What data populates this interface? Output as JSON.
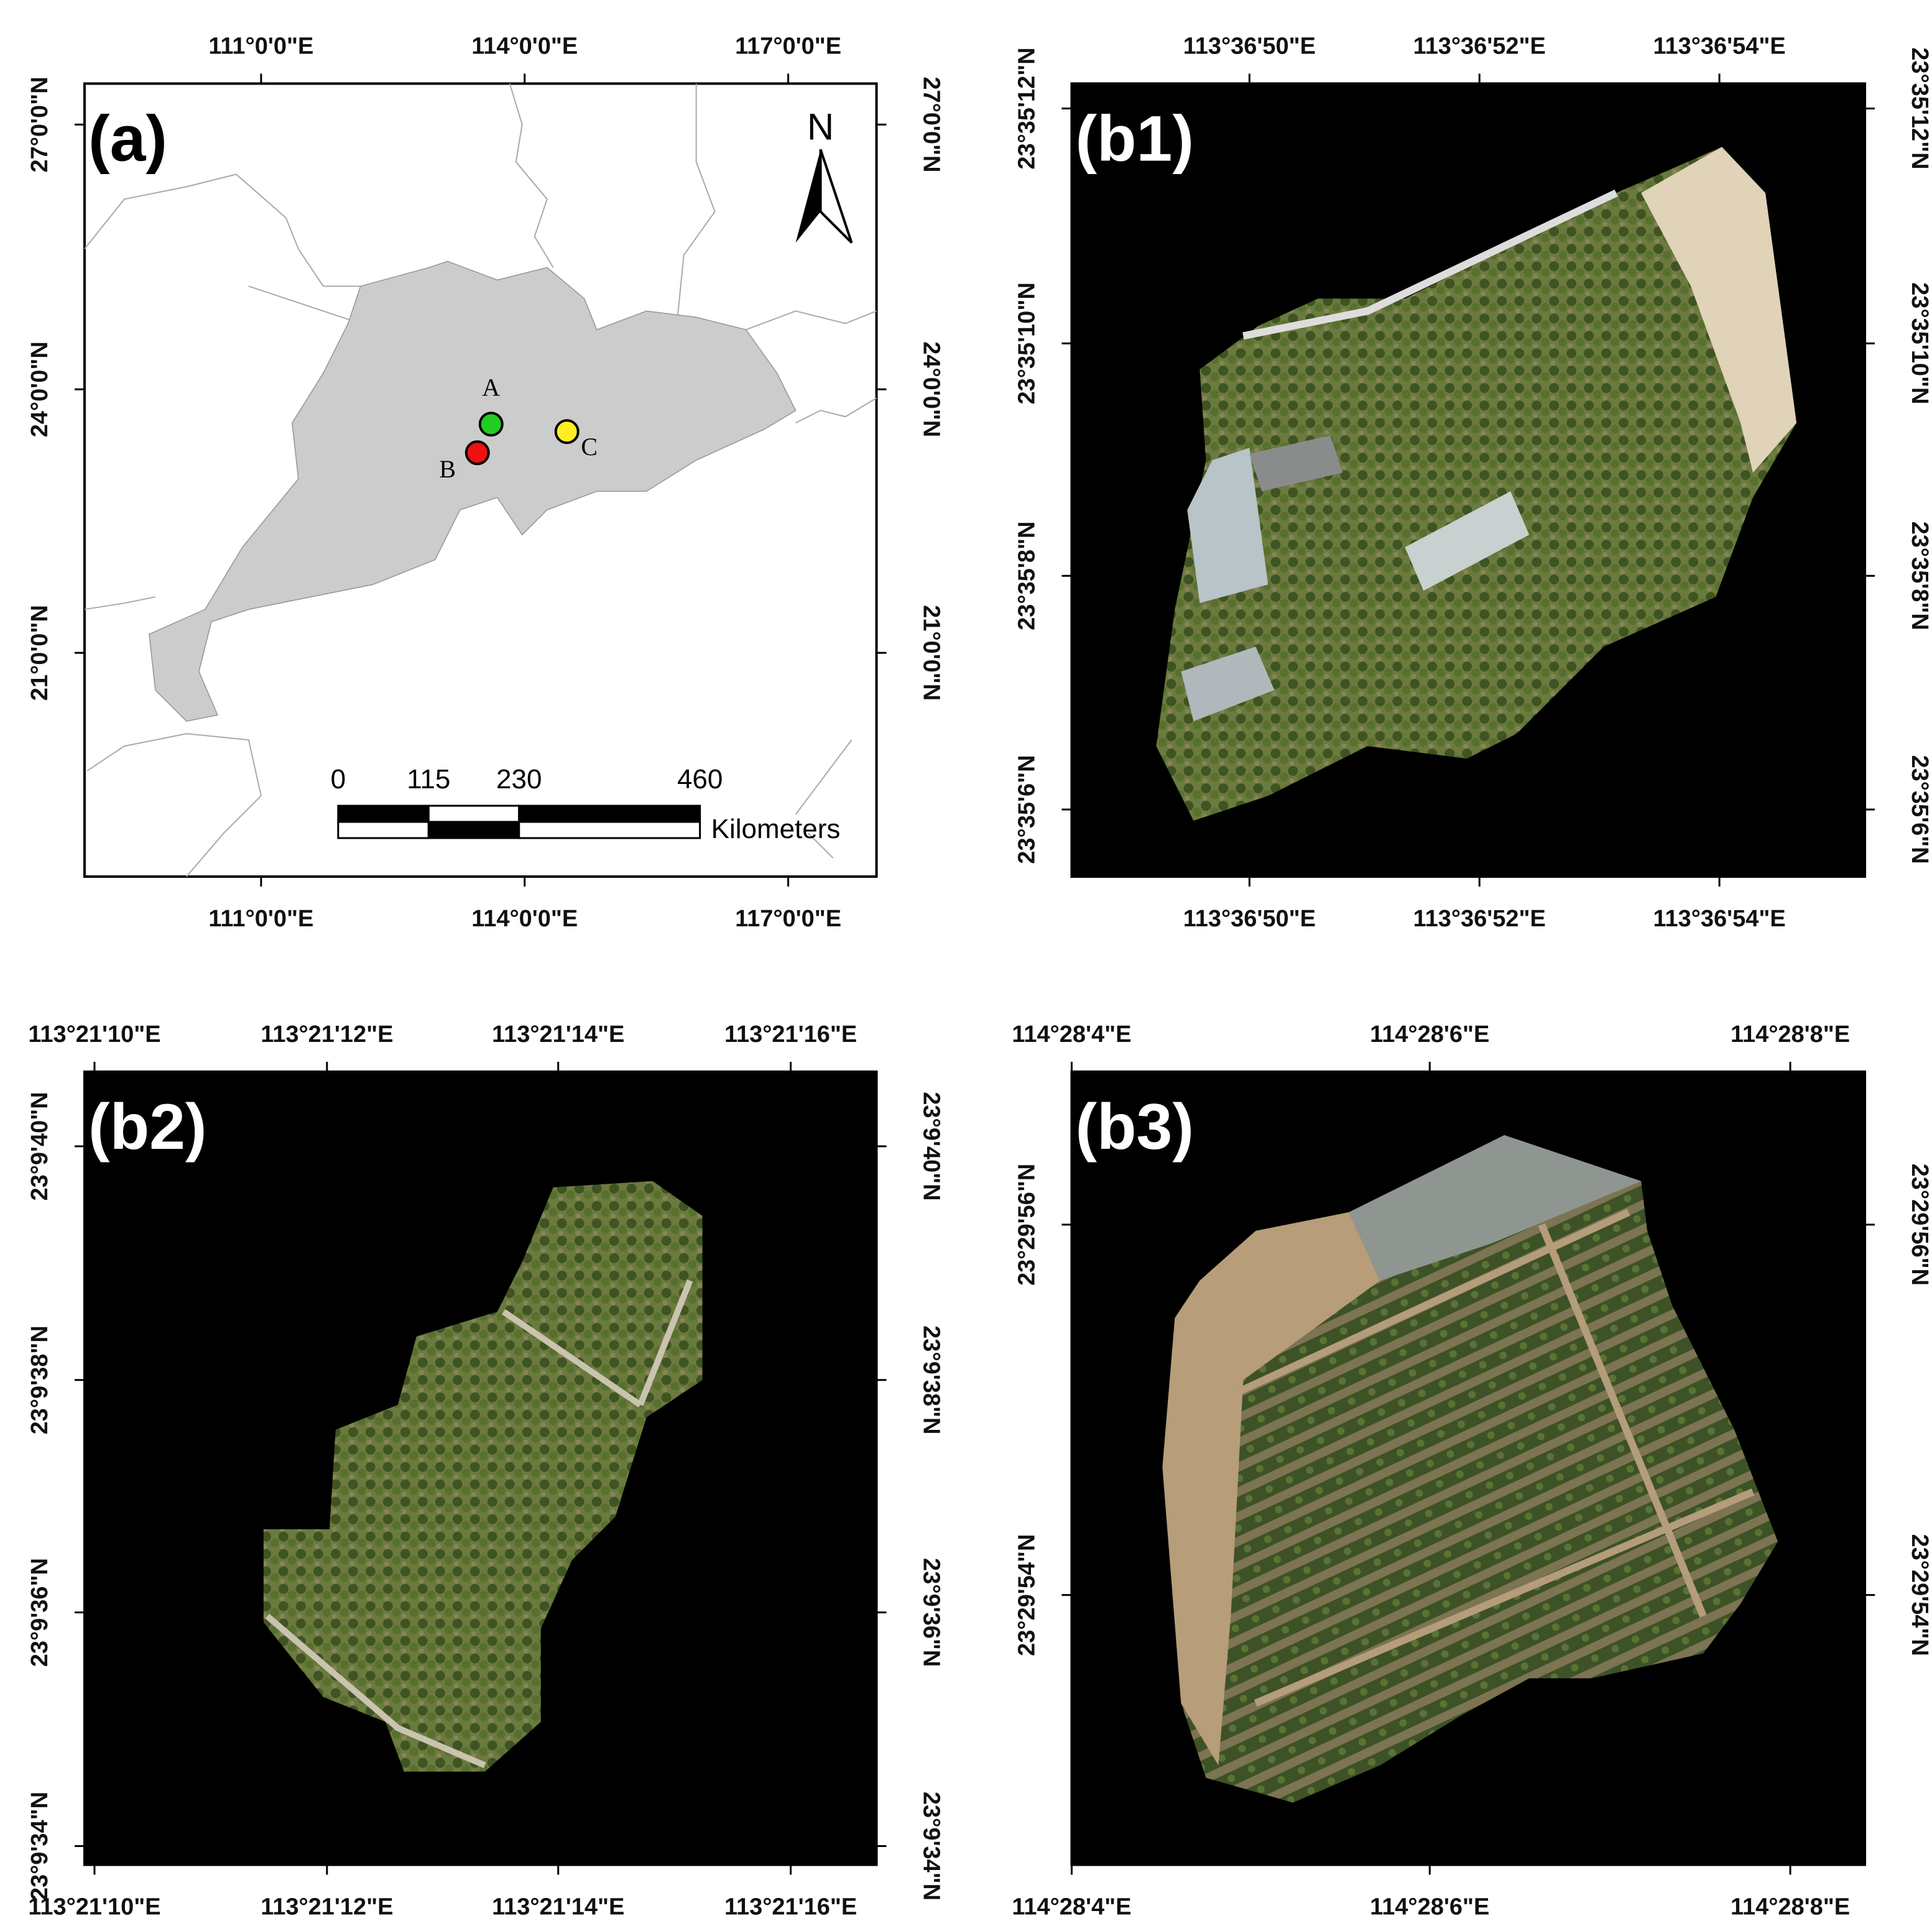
{
  "panels": [
    {
      "label": "(a)",
      "x_ticks": [
        "111°0'0\"E",
        "114°0'0\"E",
        "117°0'0\"E"
      ],
      "y_ticks": [
        "27°0'0\"N",
        "24°0'0\"N",
        "21°0'0\"N"
      ]
    },
    {
      "label": "(b1)",
      "x_ticks": [
        "113°36'50\"E",
        "113°36'52\"E",
        "113°36'54\"E"
      ],
      "y_ticks": [
        "23°35'12\"N",
        "23°35'10\"N",
        "23°35'8\"N",
        "23°35'6\"N"
      ]
    },
    {
      "label": "(b2)",
      "x_ticks": [
        "113°21'10\"E",
        "113°21'12\"E",
        "113°21'14\"E",
        "113°21'16\"E"
      ],
      "y_ticks": [
        "23°9'40\"N",
        "23°9'38\"N",
        "23°9'36\"N",
        "23°9'34\"N"
      ]
    },
    {
      "label": "(b3)",
      "x_ticks": [
        "114°28'4\"E",
        "114°28'6\"E",
        "114°28'8\"E"
      ],
      "y_ticks": [
        "23°29'56\"N",
        "23°29'54\"N"
      ]
    }
  ],
  "map": {
    "points": [
      {
        "label": "A",
        "color": "#22cc22"
      },
      {
        "label": "B",
        "color": "#ee1111"
      },
      {
        "label": "C",
        "color": "#ffee22"
      }
    ],
    "north": "N",
    "scale_bar": {
      "ticks": [
        0,
        115,
        230,
        460
      ],
      "unit": "Kilometers"
    }
  }
}
